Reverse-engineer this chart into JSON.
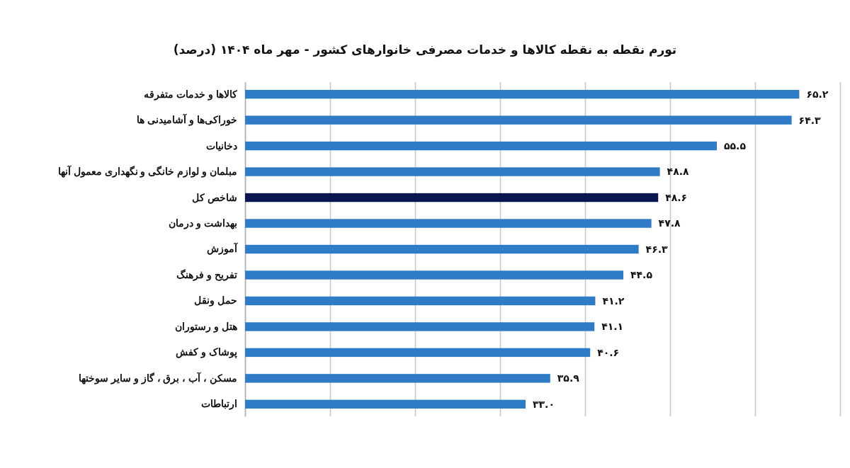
{
  "chart_data": {
    "type": "bar",
    "orientation": "horizontal",
    "title": "تورم نقطه به نقطه کالاها و خدمات مصرفی خانوارهای کشور - مهر ماه ۱۴۰۴ (درصد)",
    "categories": [
      "کالاها و خدمات متفرقه",
      "خوراکی‌ها و آشامیدنی ها",
      "دخانیات",
      "مبلمان و لوازم خانگی و نگهداری معمول آنها",
      "شاخص کل",
      "بهداشت و درمان",
      "آموزش",
      "تفریح و فرهنگ",
      "حمل ونقل",
      "هتل و رستوران",
      "پوشاک و کفش",
      "مسکن ، آب ، برق ، گاز و سایر سوختها",
      "ارتباطات"
    ],
    "values": [
      65.2,
      64.3,
      55.5,
      48.8,
      48.6,
      47.8,
      46.3,
      44.5,
      41.2,
      41.1,
      40.6,
      35.9,
      33.0
    ],
    "value_labels": [
      "۶۵.۲",
      "۶۴.۳",
      "۵۵.۵",
      "۴۸.۸",
      "۴۸.۶",
      "۴۷.۸",
      "۴۶.۳",
      "۴۴.۵",
      "۴۱.۲",
      "۴۱.۱",
      "۴۰.۶",
      "۳۵.۹",
      "۳۳.۰"
    ],
    "colors": [
      "#2f7bc6",
      "#2f7bc6",
      "#2f7bc6",
      "#2f7bc6",
      "#0a1552",
      "#2f7bc6",
      "#2f7bc6",
      "#2f7bc6",
      "#2f7bc6",
      "#2f7bc6",
      "#2f7bc6",
      "#2f7bc6",
      "#2f7bc6"
    ],
    "xlim": [
      0,
      70
    ],
    "xticks": [
      {
        "value": 0,
        "label": null
      },
      {
        "value": 10,
        "label": null
      },
      {
        "value": 20,
        "label": null
      },
      {
        "value": 30,
        "label": null
      },
      {
        "value": 40,
        "label": null
      },
      {
        "value": 50,
        "label": null
      },
      {
        "value": 60,
        "label": null
      },
      {
        "value": 70,
        "label": null
      }
    ],
    "tick_labels": "y",
    "grid": "x"
  }
}
